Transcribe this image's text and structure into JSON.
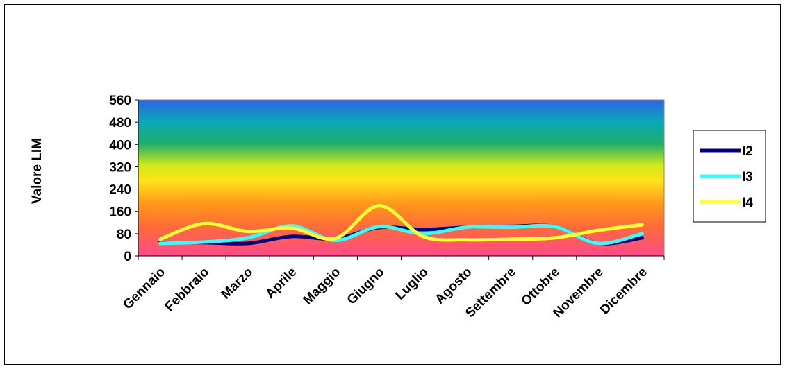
{
  "chart_data": {
    "type": "line",
    "title": "",
    "ylabel": "Valore LIM",
    "xlabel": "",
    "ylim": [
      0,
      560
    ],
    "yticks": [
      0,
      80,
      160,
      240,
      320,
      400,
      480,
      560
    ],
    "categories": [
      "Gennaio",
      "Febbraio",
      "Marzo",
      "Aprile",
      "Maggio",
      "Giugno",
      "Luglio",
      "Agosto",
      "Settembre",
      "Ottobre",
      "Novembre",
      "Dicembre"
    ],
    "series": [
      {
        "name": "I2",
        "color": "#000080",
        "values": [
          48,
          48,
          45,
          70,
          62,
          102,
          95,
          103,
          106,
          105,
          45,
          65
        ]
      },
      {
        "name": "I3",
        "color": "#33ffff",
        "values": [
          45,
          50,
          65,
          108,
          56,
          105,
          80,
          103,
          103,
          105,
          45,
          80
        ]
      },
      {
        "name": "I4",
        "color": "#ffff33",
        "values": [
          60,
          116,
          88,
          100,
          63,
          180,
          70,
          58,
          60,
          65,
          92,
          112
        ]
      }
    ],
    "legend": "right",
    "smooth": true,
    "background_gradient": [
      "#ff4a8a",
      "#ff7a2a",
      "#ffd21a",
      "#d6ec1a",
      "#1fae6a",
      "#0aa2c8",
      "#2c63e6"
    ]
  }
}
